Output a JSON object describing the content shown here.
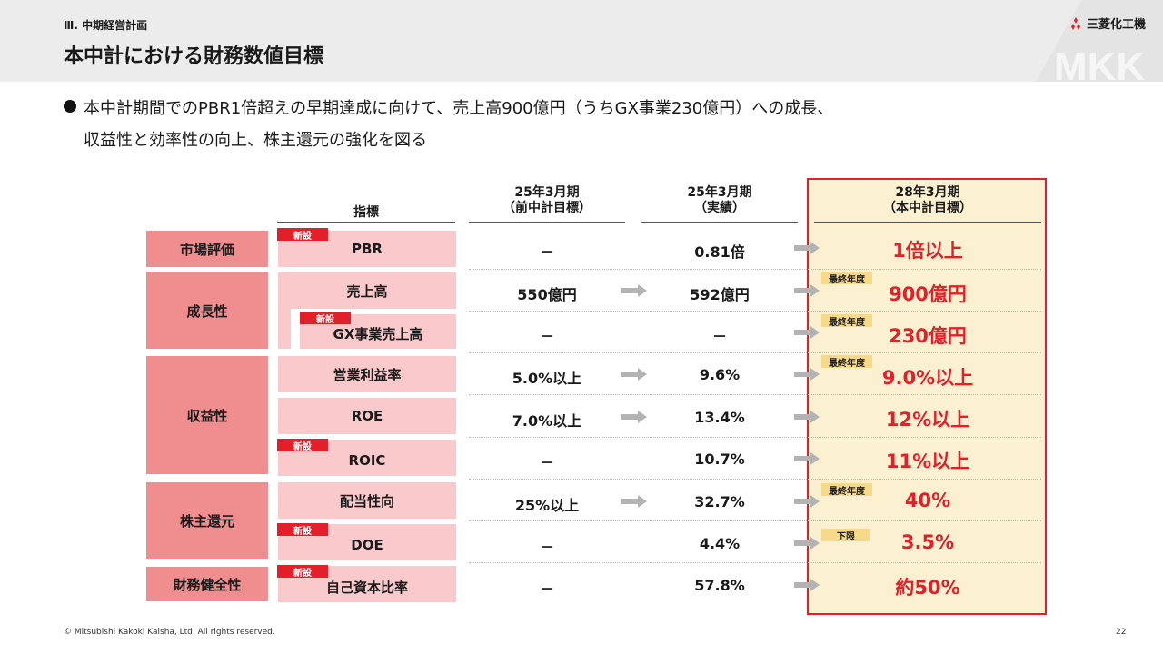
{
  "header": {
    "section": "Ⅲ. 中期経営計画",
    "title": "本中計における財務数値目標",
    "logo_text": "三菱化工機",
    "watermark": "MKK"
  },
  "summary": {
    "line1": "本中計期間でのPBR1倍超えの早期達成に向けて、売上高900億円（うちGX事業230億円）への成長、",
    "line2": "収益性と効率性の向上、株主還元の強化を図る"
  },
  "table": {
    "headers": {
      "indicator": "指標",
      "prev_plan": [
        "25年3月期",
        "（前中計目標）"
      ],
      "actual": [
        "25年3月期",
        "（実績）"
      ],
      "target": [
        "28年3月期",
        "（本中計目標）"
      ]
    },
    "categories": [
      "市場評価",
      "成長性",
      "収益性",
      "株主還元",
      "財務健全性"
    ],
    "new_badge": "新設",
    "rows": [
      {
        "indicator": "PBR",
        "prev": "－",
        "actual": "0.81倍",
        "target": "1倍以上",
        "tag": ""
      },
      {
        "indicator": "売上高",
        "prev": "550億円",
        "actual": "592億円",
        "target": "900億円",
        "tag": "最終年度"
      },
      {
        "indicator": "GX事業売上高",
        "prev": "－",
        "actual": "－",
        "target": "230億円",
        "tag": "最終年度"
      },
      {
        "indicator": "営業利益率",
        "prev": "5.0%以上",
        "actual": "9.6%",
        "target": "9.0%以上",
        "tag": "最終年度"
      },
      {
        "indicator": "ROE",
        "prev": "7.0%以上",
        "actual": "13.4%",
        "target": "12%以上",
        "tag": ""
      },
      {
        "indicator": "ROIC",
        "prev": "－",
        "actual": "10.7%",
        "target": "11%以上",
        "tag": ""
      },
      {
        "indicator": "配当性向",
        "prev": "25%以上",
        "actual": "32.7%",
        "target": "40%",
        "tag": "最終年度"
      },
      {
        "indicator": "DOE",
        "prev": "－",
        "actual": "4.4%",
        "target": "3.5%",
        "tag": "下限"
      },
      {
        "indicator": "自己資本比率",
        "prev": "－",
        "actual": "57.8%",
        "target": "約50%",
        "tag": ""
      }
    ]
  },
  "footer": {
    "copyright": "© Mitsubishi Kakoki Kaisha, Ltd. All rights reserved.",
    "page": "22"
  },
  "colors": {
    "accent_red": "#e3202a",
    "category_pink": "#f08d8f",
    "indicator_pink": "#f9c9cc",
    "target_bg": "#fbf0d0",
    "tag_yellow": "#f7d98a"
  }
}
